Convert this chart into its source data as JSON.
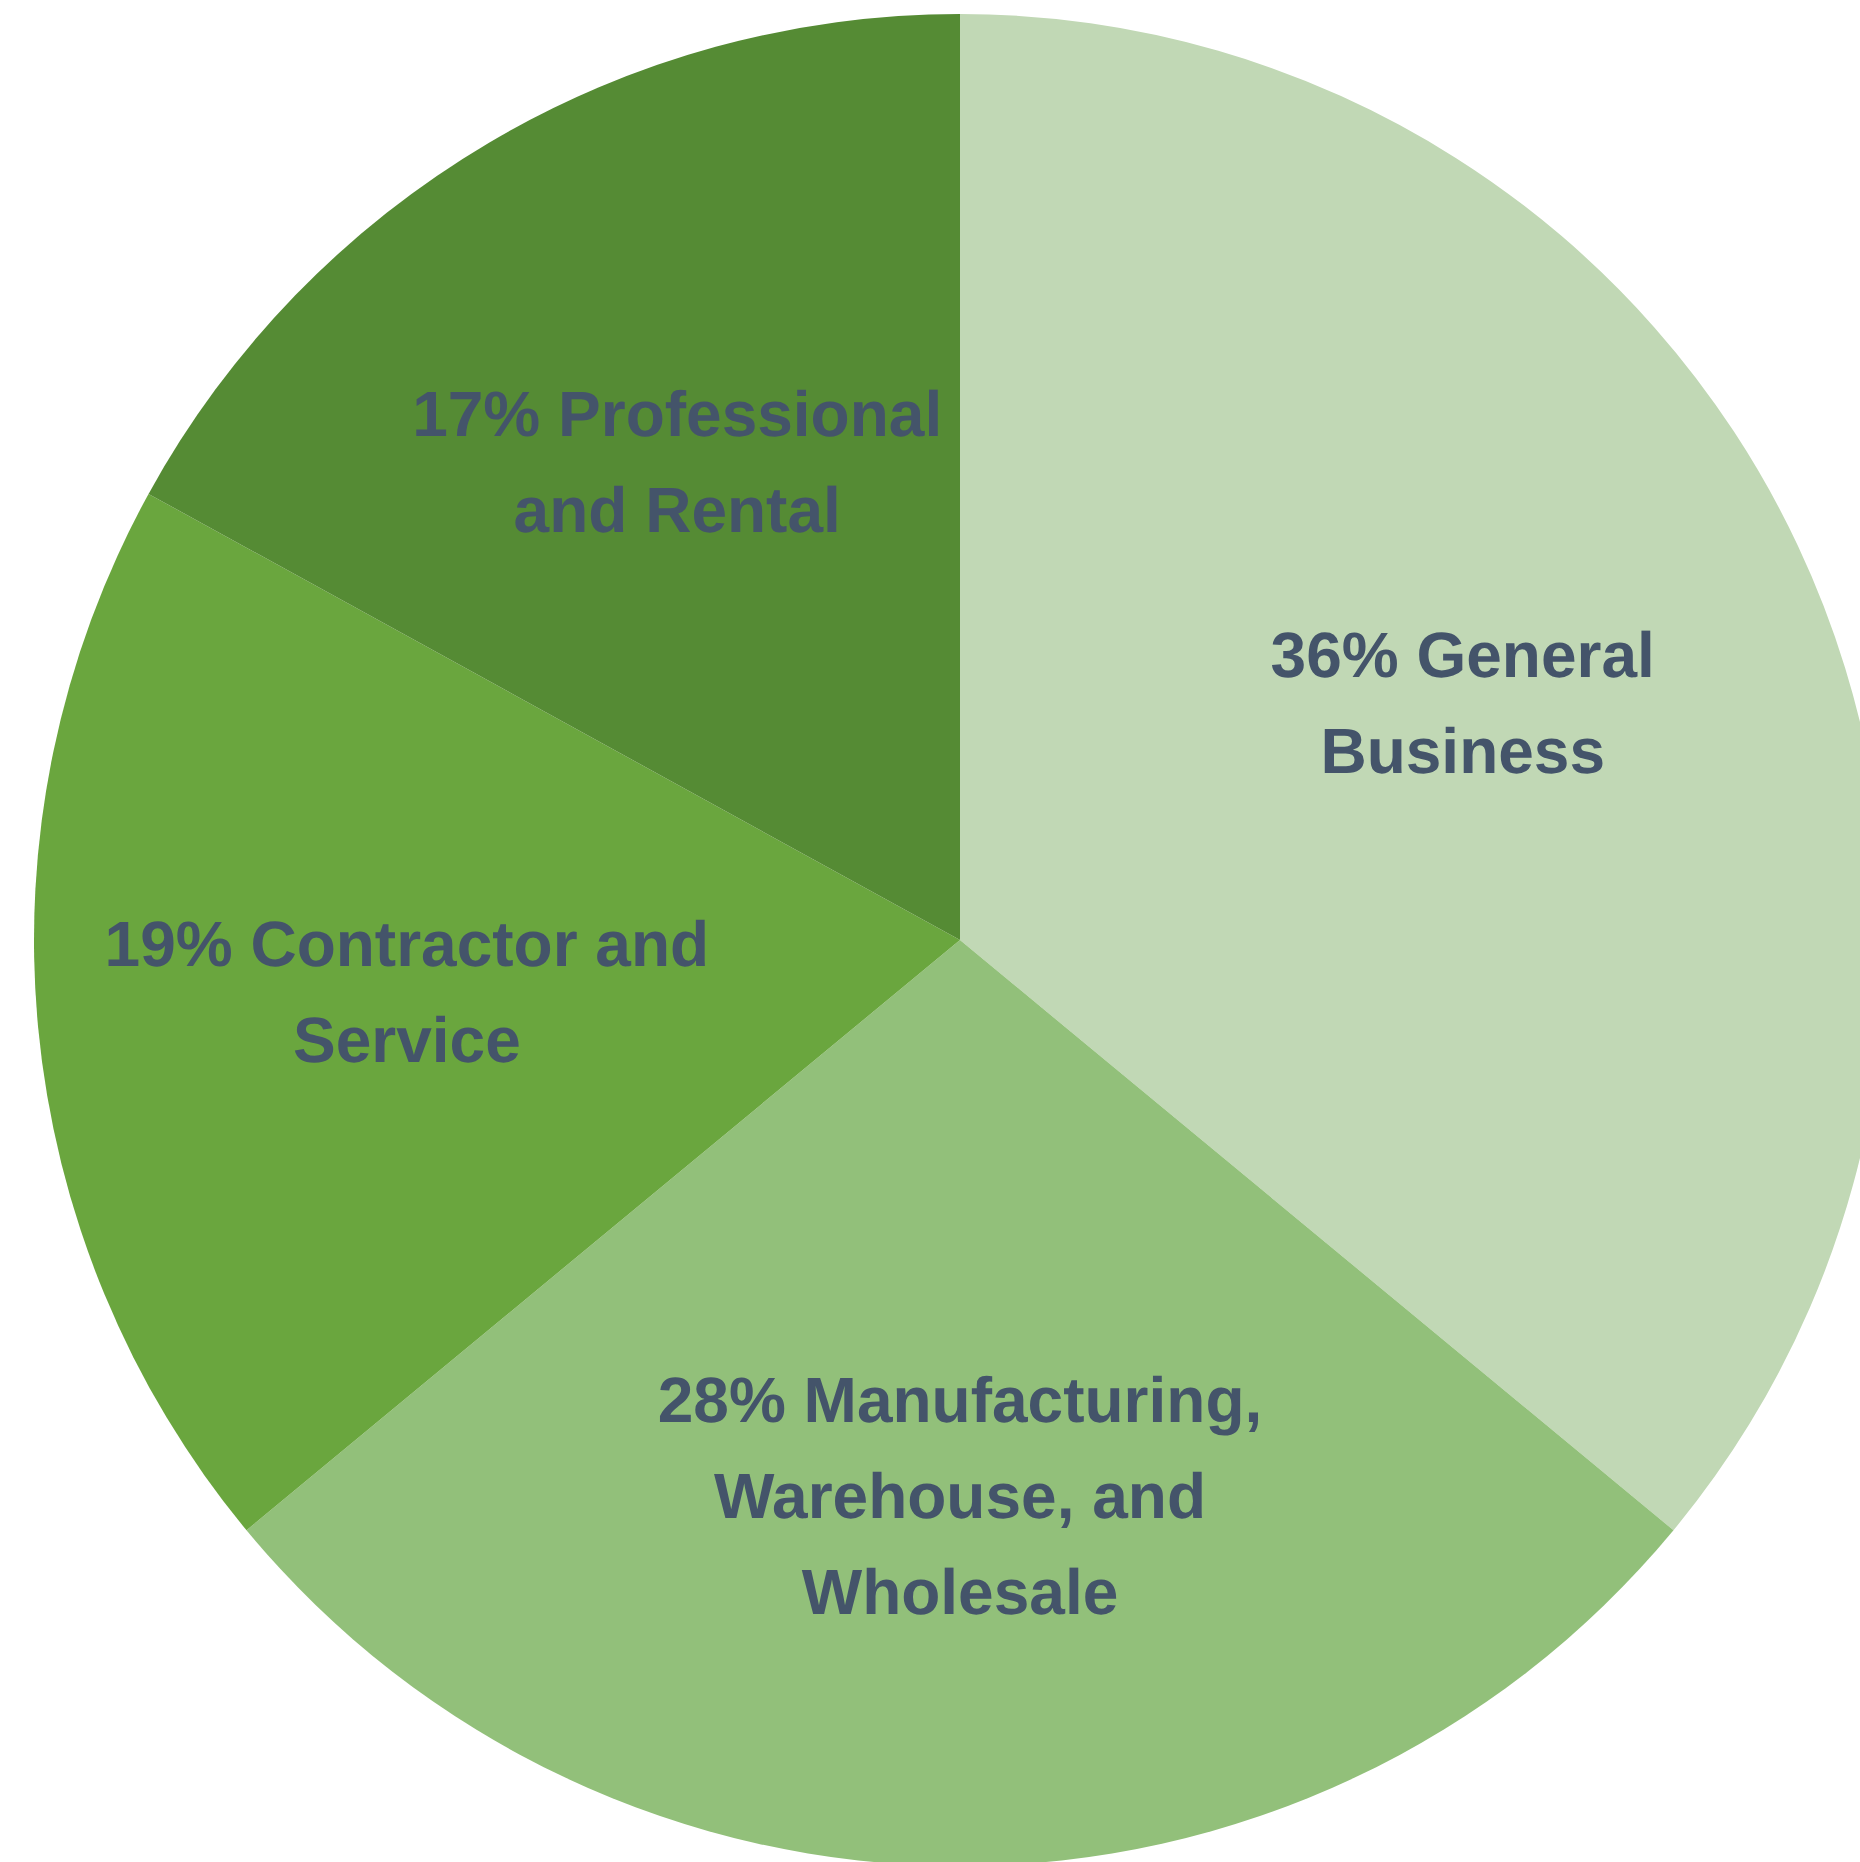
{
  "chart_data": {
    "type": "pie",
    "categories": [
      "General Business",
      "Manufacturing, Warehouse, and Wholesale",
      "Contractor and Service",
      "Professional and Rental"
    ],
    "values": [
      36,
      28,
      19,
      17
    ],
    "value_labels": [
      "36%",
      "28%",
      "19%",
      "17%"
    ],
    "colors": [
      "#c1d8b5",
      "#92c07a",
      "#6aa63e",
      "#558b34"
    ]
  }
}
